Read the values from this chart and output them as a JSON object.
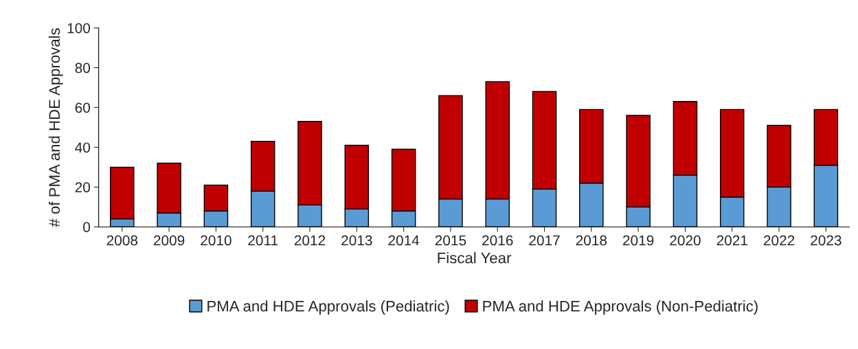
{
  "chart_data": {
    "type": "bar",
    "stacked": true,
    "xlabel": "Fiscal Year",
    "ylabel": "# of PMA and HDE Approvals",
    "categories": [
      "2008",
      "2009",
      "2010",
      "2011",
      "2012",
      "2013",
      "2014",
      "2015",
      "2016",
      "2017",
      "2018",
      "2019",
      "2020",
      "2021",
      "2022",
      "2023"
    ],
    "series": [
      {
        "name": "PMA and HDE Approvals (Pediatric)",
        "color": "#5b9bd5",
        "values": [
          4,
          7,
          8,
          18,
          11,
          9,
          8,
          14,
          14,
          19,
          22,
          10,
          26,
          15,
          20,
          31
        ]
      },
      {
        "name": "PMA and HDE Approvals (Non-Pediatric)",
        "color": "#c00000",
        "values": [
          26,
          25,
          13,
          25,
          42,
          32,
          31,
          52,
          59,
          49,
          37,
          46,
          37,
          44,
          31,
          28
        ]
      }
    ],
    "ylim": [
      0,
      100
    ],
    "yticks": [
      0,
      20,
      40,
      60,
      80,
      100
    ],
    "grid": false,
    "legend": "bottom"
  }
}
